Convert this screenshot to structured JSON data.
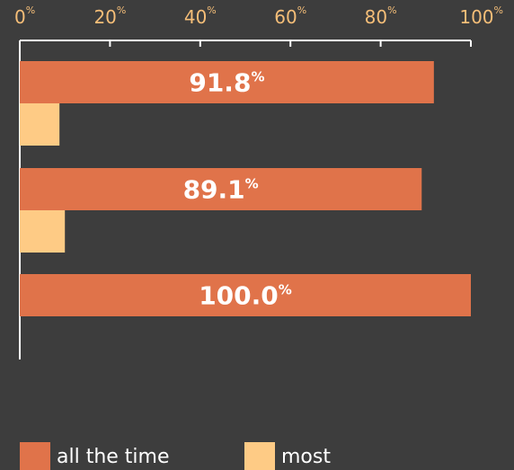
{
  "chart_data": {
    "type": "bar",
    "orientation": "horizontal",
    "categories": [
      null,
      null,
      null
    ],
    "series": [
      {
        "name": "all the time",
        "color": "#e0734a",
        "values": [
          91.8,
          89.1,
          100.0
        ],
        "value_labels": [
          "91.8%",
          "89.1%",
          "100.0%"
        ]
      },
      {
        "name": "most",
        "color": "#fecb85",
        "values": [
          8.8,
          10.0,
          0
        ]
      }
    ],
    "xlim": [
      0,
      100
    ],
    "xticks": [
      {
        "value": 0,
        "label": "0%"
      },
      {
        "value": 20,
        "label": "20%"
      },
      {
        "value": 40,
        "label": "40%"
      },
      {
        "value": 60,
        "label": "60%"
      },
      {
        "value": 80,
        "label": "80%"
      },
      {
        "value": 100,
        "label": "100%"
      }
    ],
    "legend": "bottom"
  }
}
